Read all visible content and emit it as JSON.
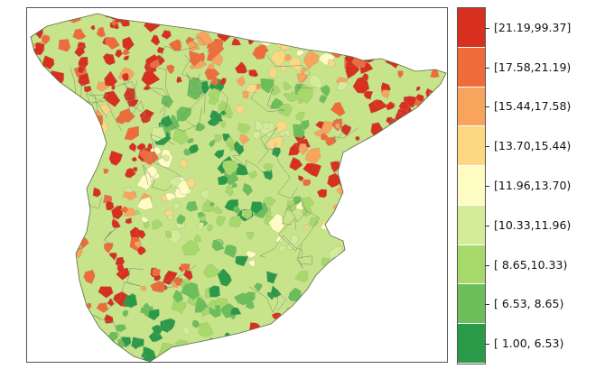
{
  "legend": {
    "classes": [
      {
        "label": "[21.19,99.37]",
        "color": "#d7301f"
      },
      {
        "label": "[17.58,21.19)",
        "color": "#ef6c3a"
      },
      {
        "label": "[15.44,17.58)",
        "color": "#f8a45c"
      },
      {
        "label": "[13.70,15.44)",
        "color": "#fdd882"
      },
      {
        "label": "[11.96,13.70)",
        "color": "#fefcc2"
      },
      {
        "label": "[10.33,11.96)",
        "color": "#d4ec98"
      },
      {
        "label": "[ 8.65,10.33)",
        "color": "#a6d96a"
      },
      {
        "label": "[ 6.53, 8.65)",
        "color": "#6bbe5a"
      },
      {
        "label": "[ 1.00, 6.53)",
        "color": "#2a9a48"
      }
    ]
  },
  "map": {
    "region": "Iberian Peninsula (Spain), municipal choropleth",
    "land_base_color": "#c8e48a",
    "border_color": "#7a8a6a"
  }
}
